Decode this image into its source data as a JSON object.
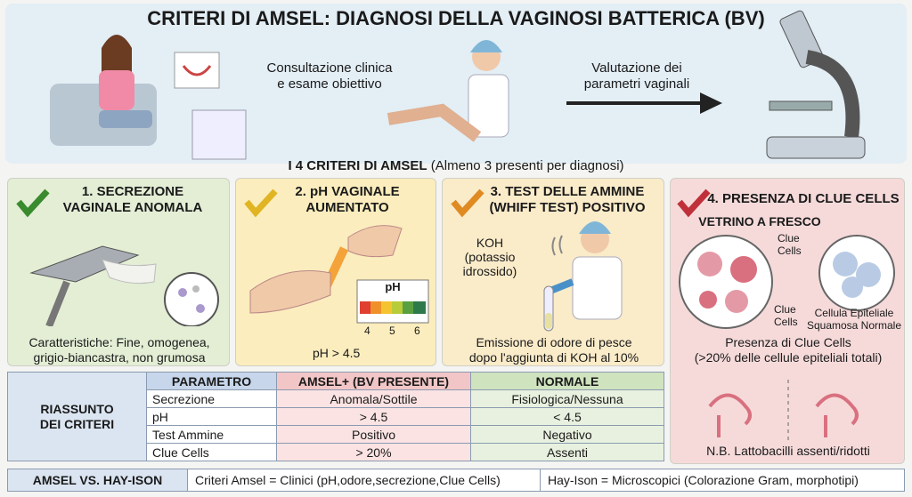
{
  "header": {
    "title": "CRITERI DI AMSEL: DIAGNOSI DELLA VAGINOSI BATTERICA (BV)",
    "caption_left": [
      "Consultazione clinica",
      "e esame obiettivo"
    ],
    "caption_right": [
      "Valutazione dei",
      "parametri vaginali"
    ]
  },
  "criteria_heading": {
    "title": "I 4 CRITERI DI AMSEL",
    "note": "(Almeno 3 presenti per diagnosi)"
  },
  "cards": [
    {
      "title": [
        "1. SECREZIONE",
        "VAGINALE ANOMALA"
      ],
      "description": [
        "Caratteristiche: Fine, omogenea,",
        "grigio-biancastra, non grumosa"
      ]
    },
    {
      "title": [
        "2. pH VAGINALE",
        "AUMENTATO"
      ],
      "scale_label": "pH",
      "scale_ticks": [
        "4",
        "5",
        "6"
      ],
      "description": [
        "pH > 4.5"
      ]
    },
    {
      "title": [
        "3. TEST DELLE AMMINE",
        "(WHIFF TEST) POSITIVO"
      ],
      "reagent_label": [
        "KOH",
        "(potassio",
        "idrossido)"
      ],
      "description": [
        "Emissione di odore di pesce",
        "dopo l'aggiunta di KOH al 10%"
      ]
    },
    {
      "title": [
        "4. PRESENZA DI CLUE CELLS"
      ],
      "subtitle": "VETRINO A FRESCO",
      "clue_label_top": [
        "Clue",
        "Cells"
      ],
      "clue_label_bottom": [
        "Clue",
        "Cells"
      ],
      "normal_label": [
        "Cellula Epiteliale",
        "Squamosa Normale"
      ],
      "description": [
        "Presenza di Clue Cells",
        "(>20% delle cellule epiteliali totali)"
      ],
      "note": "N.B. Lattobacilli assenti/ridotti"
    }
  ],
  "table": {
    "label": [
      "RIASSUNTO",
      "DEI CRITERI"
    ],
    "header": [
      "PARAMETRO",
      "AMSEL+ (BV PRESENTE)",
      "NORMALE"
    ],
    "rows": [
      [
        "Secrezione",
        "Anomala/Sottile",
        "Fisiologica/Nessuna"
      ],
      [
        "pH",
        "> 4.5",
        "< 4.5"
      ],
      [
        "Test Ammine",
        "Positivo",
        "Negativo"
      ],
      [
        "Clue Cells",
        "> 20%",
        "Assenti"
      ]
    ]
  },
  "footer": {
    "label": "AMSEL VS. HAY-ISON",
    "cells": [
      "Criteri Amsel = Clinici (pH,odore,secrezione,Clue Cells)",
      "Hay-Ison = Microscopici (Colorazione Gram, morphotipi)"
    ]
  }
}
